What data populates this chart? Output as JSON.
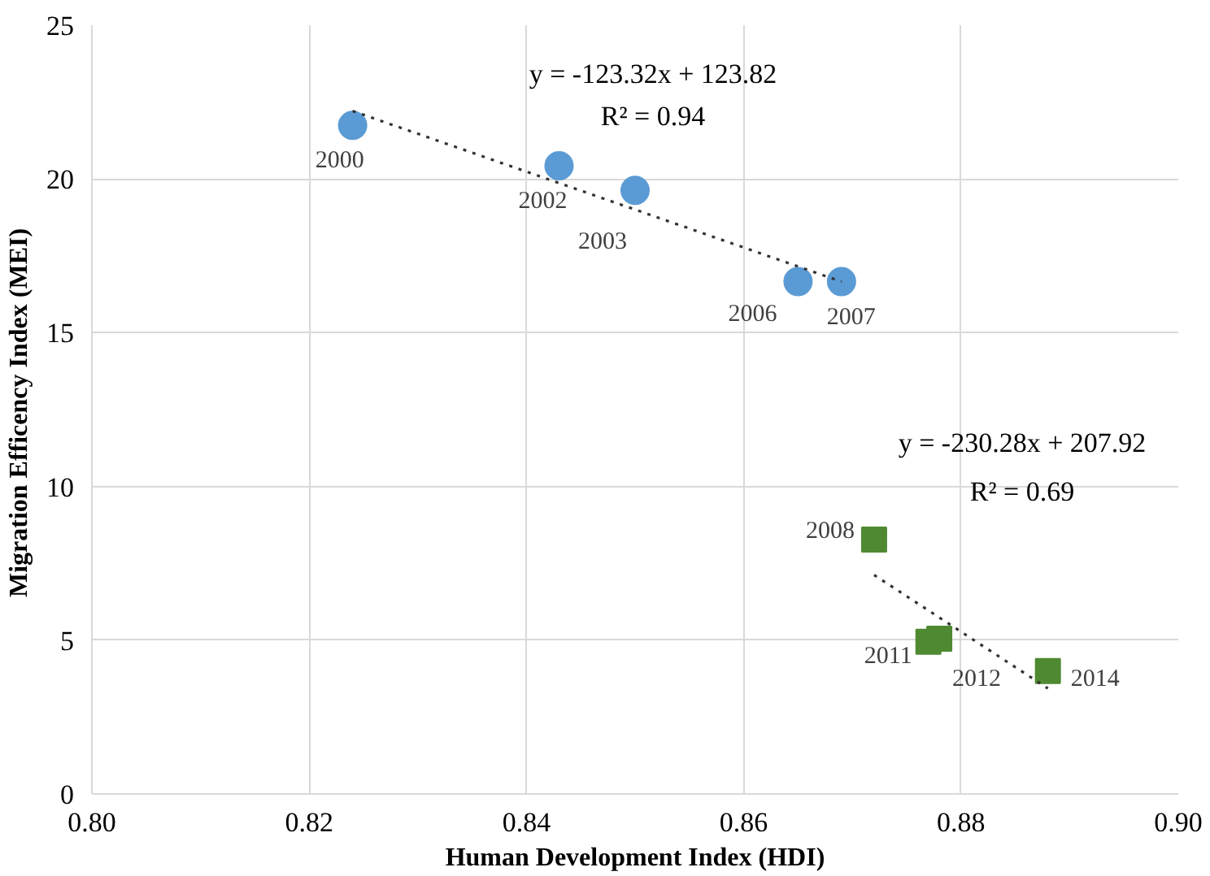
{
  "chart_data": {
    "type": "scatter",
    "xlabel": "Human Development Index (HDI)",
    "ylabel": "Migration Efficency Index  (MEI)",
    "xlim": [
      0.8,
      0.9
    ],
    "ylim": [
      0,
      25
    ],
    "xticks": [
      {
        "value": 0.8,
        "label": "0.80"
      },
      {
        "value": 0.82,
        "label": "0.82"
      },
      {
        "value": 0.84,
        "label": "0.84"
      },
      {
        "value": 0.86,
        "label": "0.86"
      },
      {
        "value": 0.88,
        "label": "0.88"
      },
      {
        "value": 0.9,
        "label": "0.90"
      }
    ],
    "yticks": [
      0,
      5,
      10,
      15,
      20,
      25
    ],
    "grid": true,
    "series": [
      {
        "marker": "circle",
        "color": "#5b9bd5",
        "x": [
          0.824,
          0.843,
          0.85,
          0.865,
          0.869
        ],
        "values": [
          21.74,
          20.43,
          19.63,
          16.66,
          16.66
        ]
      },
      {
        "marker": "square",
        "color": "#4f8a32",
        "x": [
          0.872,
          0.877,
          0.878,
          0.888
        ],
        "values": [
          8.27,
          4.95,
          5.05,
          4.0
        ]
      },
      {
        "type": "line",
        "line_style": "dotted",
        "color": "#333333",
        "x": [
          0.824,
          0.869
        ],
        "values": [
          22.21,
          16.66
        ]
      },
      {
        "type": "line",
        "line_style": "dotted",
        "color": "#333333",
        "x": [
          0.872,
          0.888
        ],
        "values": [
          7.12,
          3.43
        ]
      }
    ],
    "annotations": [
      "y = -123.32x + 123.82",
      "R² = 0.94",
      "y = -230.28x + 207.92",
      "R² = 0.69",
      {
        "text": "2000",
        "x": 0.824,
        "y": 21.74
      },
      {
        "text": "2002",
        "x": 0.843,
        "y": 20.43
      },
      {
        "text": "2003",
        "x": 0.85,
        "y": 19.63
      },
      {
        "text": "2006",
        "x": 0.865,
        "y": 16.66
      },
      {
        "text": "2007",
        "x": 0.869,
        "y": 16.66
      },
      {
        "text": "2008",
        "x": 0.872,
        "y": 8.27
      },
      {
        "text": "2011",
        "x": 0.877,
        "y": 4.95
      },
      {
        "text": "2012",
        "x": 0.878,
        "y": 5.05
      },
      {
        "text": "2014",
        "x": 0.888,
        "y": 4.0
      }
    ]
  }
}
